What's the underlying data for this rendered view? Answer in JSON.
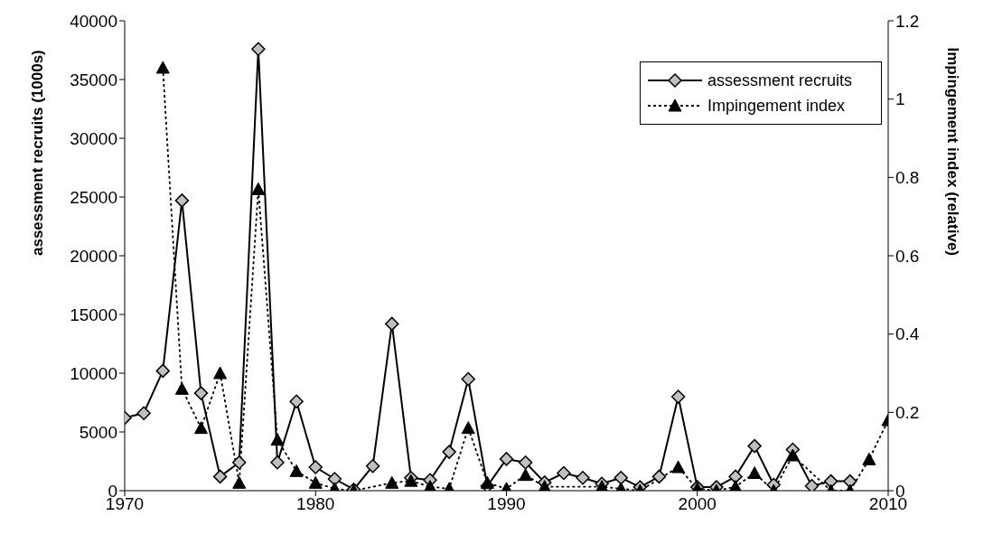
{
  "chart_data": {
    "type": "line",
    "ylabel": "assessment recruits (1000s)",
    "y2label": "Impingement index (relative)",
    "x": [
      1970,
      1971,
      1972,
      1973,
      1974,
      1975,
      1976,
      1977,
      1978,
      1979,
      1980,
      1981,
      1982,
      1983,
      1984,
      1985,
      1986,
      1987,
      1988,
      1989,
      1990,
      1991,
      1992,
      1993,
      1994,
      1995,
      1996,
      1997,
      1998,
      1999,
      2000,
      2001,
      2002,
      2003,
      2004,
      2005,
      2006,
      2007,
      2008,
      2009,
      2010
    ],
    "series": [
      {
        "name": "assessment recruits",
        "color": "#000000",
        "marker": "diamond",
        "line_style": "solid",
        "values": [
          6200,
          6600,
          10200,
          24700,
          8300,
          1200,
          2400,
          37600,
          2400,
          7600,
          2000,
          1000,
          100,
          2100,
          14200,
          1100,
          900,
          3300,
          9500,
          400,
          2700,
          2400,
          700,
          1500,
          1100,
          600,
          1100,
          300,
          1200,
          8000,
          300,
          300,
          1200,
          3800,
          500,
          3500,
          400,
          800,
          800,
          null,
          null
        ]
      },
      {
        "name": "Impingement index",
        "color": "#000000",
        "marker": "triangle",
        "line_style": "dotted",
        "axis": "y2",
        "values": [
          null,
          null,
          1.08,
          0.26,
          0.16,
          0.3,
          0.02,
          0.77,
          0.13,
          0.05,
          0.02,
          0.005,
          0,
          null,
          0.02,
          0.025,
          0.01,
          0.005,
          0.16,
          0.02,
          0.005,
          0.04,
          0.01,
          null,
          null,
          0.01,
          0.005,
          0,
          null,
          0.06,
          0.005,
          0,
          0.01,
          0.045,
          0,
          0.09,
          null,
          0,
          0,
          0.08,
          0.18
        ]
      }
    ],
    "xlim": [
      1970,
      2010
    ],
    "xticks": [
      1970,
      1980,
      1990,
      2000,
      2010
    ],
    "ylim": [
      0,
      40000
    ],
    "yticks": [
      0,
      5000,
      10000,
      15000,
      20000,
      25000,
      30000,
      35000,
      40000
    ],
    "y2lim": [
      0,
      1.2
    ],
    "y2ticks": [
      0,
      0.2,
      0.4,
      0.6,
      0.8,
      1,
      1.2
    ],
    "grid": false,
    "legend": "top right"
  }
}
